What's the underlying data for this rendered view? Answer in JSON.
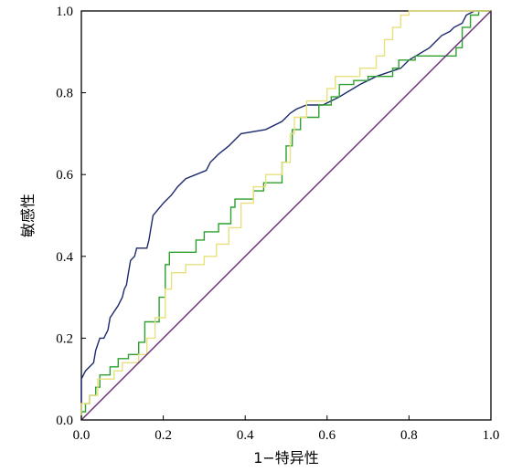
{
  "chart_data": {
    "type": "line",
    "xlabel": "1−特异性",
    "ylabel": "敏感性",
    "xlim": [
      0,
      1
    ],
    "ylim": [
      0,
      1
    ],
    "x_ticks": [
      "0.0",
      "0.2",
      "0.4",
      "0.6",
      "0.8",
      "1.0"
    ],
    "y_ticks": [
      "0.0",
      "0.2",
      "0.4",
      "0.6",
      "0.8",
      "1.0"
    ],
    "grid": false,
    "legend": "none",
    "series": [
      {
        "color": "#1c2a6e",
        "points": [
          [
            0,
            0
          ],
          [
            0,
            0.1
          ],
          [
            0.01,
            0.12
          ],
          [
            0.02,
            0.13
          ],
          [
            0.03,
            0.14
          ],
          [
            0.035,
            0.17
          ],
          [
            0.045,
            0.2
          ],
          [
            0.055,
            0.2
          ],
          [
            0.065,
            0.22
          ],
          [
            0.07,
            0.25
          ],
          [
            0.09,
            0.28
          ],
          [
            0.1,
            0.3
          ],
          [
            0.105,
            0.32
          ],
          [
            0.11,
            0.33
          ],
          [
            0.115,
            0.36
          ],
          [
            0.12,
            0.39
          ],
          [
            0.13,
            0.4
          ],
          [
            0.135,
            0.42
          ],
          [
            0.16,
            0.42
          ],
          [
            0.165,
            0.44
          ],
          [
            0.175,
            0.5
          ],
          [
            0.2,
            0.53
          ],
          [
            0.22,
            0.55
          ],
          [
            0.235,
            0.57
          ],
          [
            0.255,
            0.59
          ],
          [
            0.28,
            0.6
          ],
          [
            0.305,
            0.61
          ],
          [
            0.315,
            0.63
          ],
          [
            0.335,
            0.65
          ],
          [
            0.36,
            0.67
          ],
          [
            0.38,
            0.69
          ],
          [
            0.39,
            0.7
          ],
          [
            0.45,
            0.71
          ],
          [
            0.49,
            0.73
          ],
          [
            0.51,
            0.75
          ],
          [
            0.525,
            0.76
          ],
          [
            0.55,
            0.77
          ],
          [
            0.59,
            0.77
          ],
          [
            0.63,
            0.79
          ],
          [
            0.68,
            0.82
          ],
          [
            0.72,
            0.84
          ],
          [
            0.78,
            0.86
          ],
          [
            0.8,
            0.88
          ],
          [
            0.85,
            0.91
          ],
          [
            0.88,
            0.94
          ],
          [
            0.9,
            0.95
          ],
          [
            0.91,
            0.96
          ],
          [
            0.93,
            0.97
          ],
          [
            0.94,
            0.99
          ],
          [
            0.96,
            1.0
          ],
          [
            1,
            1.0
          ]
        ]
      },
      {
        "color": "#2fa02f",
        "points": [
          [
            0,
            0
          ],
          [
            0,
            0.02
          ],
          [
            0.01,
            0.02
          ],
          [
            0.01,
            0.04
          ],
          [
            0.02,
            0.04
          ],
          [
            0.02,
            0.06
          ],
          [
            0.035,
            0.06
          ],
          [
            0.035,
            0.08
          ],
          [
            0.045,
            0.08
          ],
          [
            0.045,
            0.11
          ],
          [
            0.07,
            0.11
          ],
          [
            0.07,
            0.13
          ],
          [
            0.09,
            0.13
          ],
          [
            0.09,
            0.15
          ],
          [
            0.115,
            0.15
          ],
          [
            0.115,
            0.16
          ],
          [
            0.14,
            0.16
          ],
          [
            0.14,
            0.19
          ],
          [
            0.155,
            0.19
          ],
          [
            0.155,
            0.24
          ],
          [
            0.19,
            0.24
          ],
          [
            0.19,
            0.3
          ],
          [
            0.205,
            0.3
          ],
          [
            0.205,
            0.38
          ],
          [
            0.215,
            0.38
          ],
          [
            0.215,
            0.41
          ],
          [
            0.28,
            0.41
          ],
          [
            0.28,
            0.44
          ],
          [
            0.3,
            0.44
          ],
          [
            0.3,
            0.46
          ],
          [
            0.335,
            0.46
          ],
          [
            0.335,
            0.48
          ],
          [
            0.365,
            0.48
          ],
          [
            0.365,
            0.52
          ],
          [
            0.375,
            0.52
          ],
          [
            0.375,
            0.54
          ],
          [
            0.42,
            0.54
          ],
          [
            0.42,
            0.56
          ],
          [
            0.445,
            0.56
          ],
          [
            0.445,
            0.58
          ],
          [
            0.49,
            0.58
          ],
          [
            0.49,
            0.63
          ],
          [
            0.5,
            0.63
          ],
          [
            0.5,
            0.67
          ],
          [
            0.515,
            0.67
          ],
          [
            0.515,
            0.71
          ],
          [
            0.535,
            0.71
          ],
          [
            0.535,
            0.74
          ],
          [
            0.58,
            0.74
          ],
          [
            0.58,
            0.77
          ],
          [
            0.61,
            0.77
          ],
          [
            0.61,
            0.79
          ],
          [
            0.63,
            0.79
          ],
          [
            0.63,
            0.82
          ],
          [
            0.665,
            0.82
          ],
          [
            0.665,
            0.83
          ],
          [
            0.7,
            0.83
          ],
          [
            0.7,
            0.84
          ],
          [
            0.76,
            0.84
          ],
          [
            0.76,
            0.86
          ],
          [
            0.775,
            0.86
          ],
          [
            0.775,
            0.88
          ],
          [
            0.815,
            0.88
          ],
          [
            0.815,
            0.89
          ],
          [
            0.915,
            0.89
          ],
          [
            0.915,
            0.91
          ],
          [
            0.93,
            0.91
          ],
          [
            0.93,
            0.96
          ],
          [
            0.95,
            0.96
          ],
          [
            0.95,
            0.99
          ],
          [
            0.97,
            0.99
          ],
          [
            0.97,
            1.0
          ],
          [
            1,
            1.0
          ]
        ]
      },
      {
        "color": "#e8e07c",
        "points": [
          [
            0,
            0
          ],
          [
            0,
            0.04
          ],
          [
            0.02,
            0.04
          ],
          [
            0.02,
            0.06
          ],
          [
            0.04,
            0.06
          ],
          [
            0.04,
            0.1
          ],
          [
            0.08,
            0.1
          ],
          [
            0.08,
            0.12
          ],
          [
            0.1,
            0.12
          ],
          [
            0.1,
            0.14
          ],
          [
            0.14,
            0.14
          ],
          [
            0.14,
            0.16
          ],
          [
            0.16,
            0.16
          ],
          [
            0.16,
            0.2
          ],
          [
            0.18,
            0.2
          ],
          [
            0.18,
            0.25
          ],
          [
            0.205,
            0.25
          ],
          [
            0.205,
            0.32
          ],
          [
            0.22,
            0.32
          ],
          [
            0.22,
            0.36
          ],
          [
            0.255,
            0.36
          ],
          [
            0.255,
            0.38
          ],
          [
            0.3,
            0.38
          ],
          [
            0.3,
            0.4
          ],
          [
            0.33,
            0.4
          ],
          [
            0.33,
            0.43
          ],
          [
            0.36,
            0.43
          ],
          [
            0.36,
            0.47
          ],
          [
            0.39,
            0.47
          ],
          [
            0.39,
            0.53
          ],
          [
            0.42,
            0.53
          ],
          [
            0.42,
            0.57
          ],
          [
            0.45,
            0.57
          ],
          [
            0.45,
            0.6
          ],
          [
            0.49,
            0.6
          ],
          [
            0.49,
            0.63
          ],
          [
            0.51,
            0.63
          ],
          [
            0.51,
            0.7
          ],
          [
            0.52,
            0.7
          ],
          [
            0.52,
            0.74
          ],
          [
            0.55,
            0.74
          ],
          [
            0.55,
            0.78
          ],
          [
            0.6,
            0.78
          ],
          [
            0.6,
            0.81
          ],
          [
            0.62,
            0.81
          ],
          [
            0.62,
            0.84
          ],
          [
            0.68,
            0.84
          ],
          [
            0.68,
            0.86
          ],
          [
            0.72,
            0.86
          ],
          [
            0.72,
            0.89
          ],
          [
            0.74,
            0.89
          ],
          [
            0.74,
            0.93
          ],
          [
            0.76,
            0.93
          ],
          [
            0.76,
            0.96
          ],
          [
            0.78,
            0.96
          ],
          [
            0.78,
            0.99
          ],
          [
            0.8,
            0.99
          ],
          [
            0.8,
            1.0
          ],
          [
            1,
            1.0
          ]
        ]
      },
      {
        "color": "#6a2c7a",
        "points": [
          [
            0,
            0
          ],
          [
            1,
            1
          ]
        ]
      }
    ]
  }
}
